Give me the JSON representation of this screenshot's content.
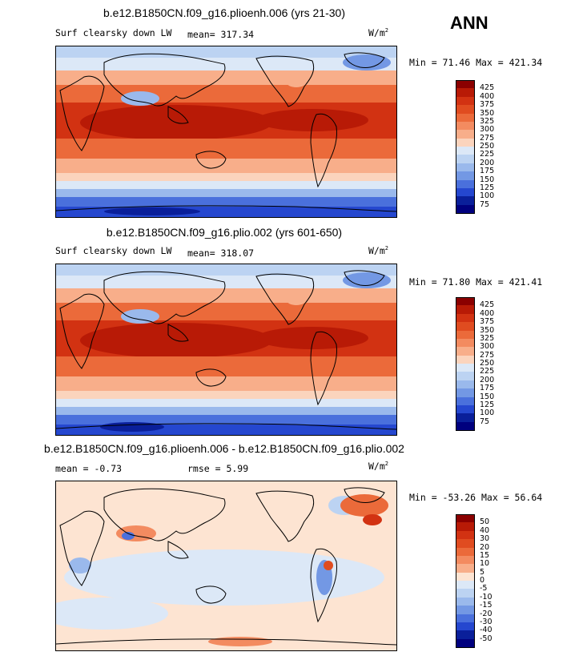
{
  "season": "ANN",
  "panels": [
    {
      "title": "b.e12.B1850CN.f09_g16.plioenh.006 (yrs 21-30)",
      "variable": "Surf clearsky down LW",
      "stat1": "mean= 317.34",
      "stat2": "",
      "units": "W/m",
      "units_exp": "2",
      "minmax": "Min =  71.46 Max = 421.34"
    },
    {
      "title": "b.e12.B1850CN.f09_g16.plio.002 (yrs 601-650)",
      "variable": "Surf clearsky down LW",
      "stat1": "mean= 318.07",
      "stat2": "",
      "units": "W/m",
      "units_exp": "2",
      "minmax": "Min =  71.80 Max = 421.41"
    },
    {
      "title": "b.e12.B1850CN.f09_g16.plioenh.006 - b.e12.B1850CN.f09_g16.plio.002",
      "variable": "",
      "stat1": "mean =   -0.73",
      "stat2": "rmse =    5.99",
      "units": "W/m",
      "units_exp": "2",
      "minmax": "Min = -53.26 Max =  56.64"
    }
  ],
  "chart_data": [
    {
      "type": "heatmap",
      "title": "b.e12.B1850CN.f09_g16.plioenh.006 (yrs 21-30)",
      "variable": "Surf clearsky down LW",
      "units": "W/m^2",
      "mean": 317.34,
      "min": 71.46,
      "max": 421.34,
      "colorbar_levels": [
        425,
        400,
        375,
        350,
        325,
        300,
        275,
        250,
        225,
        200,
        175,
        150,
        125,
        100,
        75
      ],
      "colorbar_colors": [
        "#8b0000",
        "#b81a06",
        "#d23212",
        "#e04c20",
        "#eb6a3a",
        "#f38b60",
        "#f8ae8a",
        "#fbd4bd",
        "#dce8f7",
        "#bcd3f2",
        "#9ab9ec",
        "#7398e4",
        "#4a70dc",
        "#2547cf",
        "#0a1f9a",
        "#00007e"
      ]
    },
    {
      "type": "heatmap",
      "title": "b.e12.B1850CN.f09_g16.plio.002 (yrs 601-650)",
      "variable": "Surf clearsky down LW",
      "units": "W/m^2",
      "mean": 318.07,
      "min": 71.8,
      "max": 421.41,
      "colorbar_levels": [
        425,
        400,
        375,
        350,
        325,
        300,
        275,
        250,
        225,
        200,
        175,
        150,
        125,
        100,
        75
      ],
      "colorbar_colors": [
        "#8b0000",
        "#b81a06",
        "#d23212",
        "#e04c20",
        "#eb6a3a",
        "#f38b60",
        "#f8ae8a",
        "#fbd4bd",
        "#dce8f7",
        "#bcd3f2",
        "#9ab9ec",
        "#7398e4",
        "#4a70dc",
        "#2547cf",
        "#0a1f9a",
        "#00007e"
      ]
    },
    {
      "type": "heatmap",
      "title": "b.e12.B1850CN.f09_g16.plioenh.006 - b.e12.B1850CN.f09_g16.plio.002",
      "units": "W/m^2",
      "mean": -0.73,
      "rmse": 5.99,
      "min": -53.26,
      "max": 56.64,
      "colorbar_levels": [
        50,
        40,
        30,
        20,
        15,
        10,
        5,
        0,
        -5,
        -10,
        -15,
        -20,
        -30,
        -40,
        -50
      ],
      "colorbar_colors": [
        "#8b0000",
        "#b81a06",
        "#d23212",
        "#e04c20",
        "#eb6a3a",
        "#f38b60",
        "#f8ae8a",
        "#fde4d2",
        "#dce8f7",
        "#bcd3f2",
        "#9ab9ec",
        "#7398e4",
        "#4a70dc",
        "#2547cf",
        "#0a1f9a",
        "#00007e"
      ]
    }
  ]
}
